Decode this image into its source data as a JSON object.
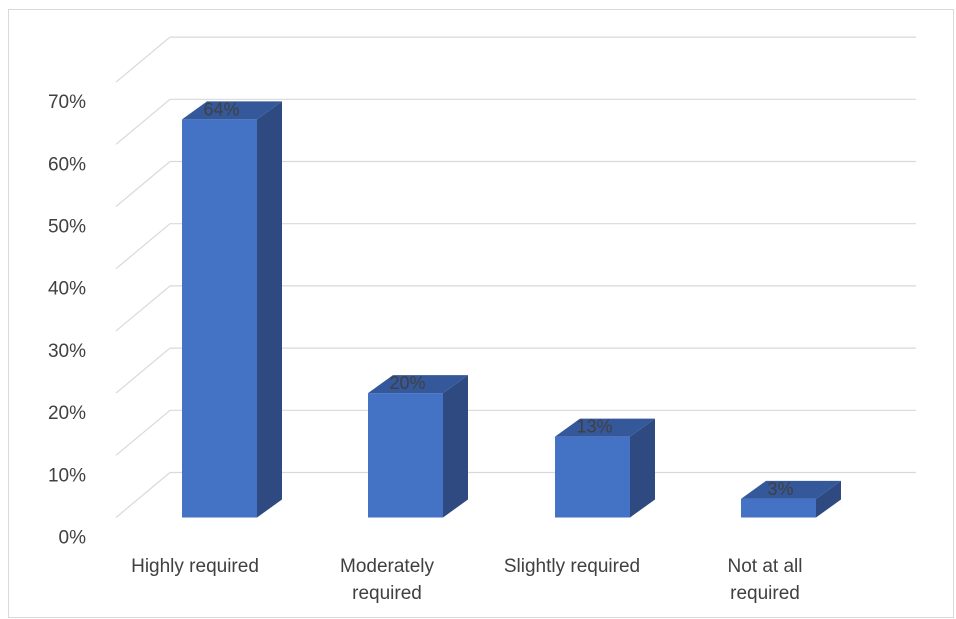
{
  "chart_data": {
    "type": "bar",
    "style": "3d-column",
    "categories": [
      [
        "Highly required"
      ],
      [
        "Moderately",
        "required"
      ],
      [
        "Slightly required"
      ],
      [
        "Not at all",
        "required"
      ]
    ],
    "values": [
      64,
      20,
      13,
      3
    ],
    "data_labels": [
      "64%",
      "20%",
      "13%",
      "3%"
    ],
    "yticks": [
      "0%",
      "10%",
      "20%",
      "30%",
      "40%",
      "50%",
      "60%",
      "70%"
    ],
    "ylim": [
      0,
      70
    ],
    "grid": true,
    "legend": "none",
    "colors": {
      "bar_front": "#4472c4",
      "bar_side": "#2e4a80",
      "bar_top": "#34589a",
      "grid": "#d9d9d9",
      "text": "#404040"
    }
  }
}
